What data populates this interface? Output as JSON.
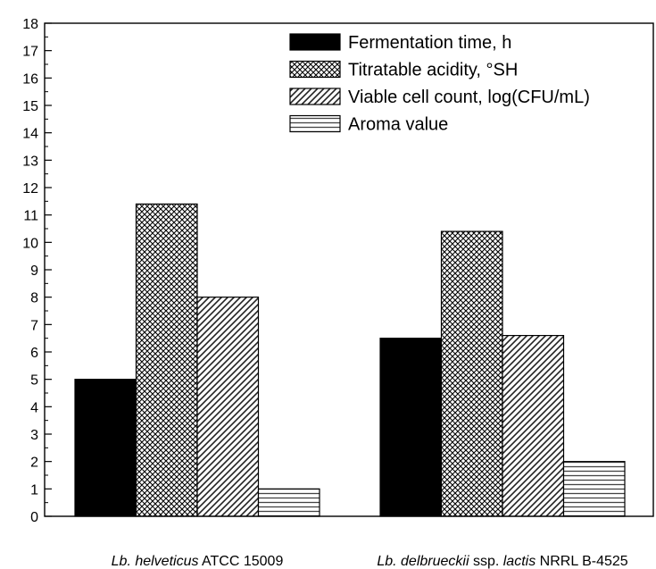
{
  "chart_data": {
    "type": "bar",
    "categories": [
      {
        "italic": "Lb. helveticus",
        "rest": " ATCC 15009"
      },
      {
        "italic": "Lb. delbrueckii",
        "mid": " ssp. ",
        "italic2": "lactis",
        "rest": " NRRL B-4525"
      }
    ],
    "series": [
      {
        "name": "Fermentation time, h",
        "values": [
          5,
          6.5
        ],
        "pattern": "solid"
      },
      {
        "name": "Titratable acidity, °SH",
        "values": [
          11.4,
          10.4
        ],
        "pattern": "crosshatch"
      },
      {
        "name": "Viable cell count, log(CFU/mL)",
        "values": [
          8,
          6.6
        ],
        "pattern": "diagonal"
      },
      {
        "name": "Aroma value",
        "values": [
          1,
          2
        ],
        "pattern": "horizontal"
      }
    ],
    "ylim": [
      0,
      18
    ],
    "yticks": [
      0,
      1,
      2,
      3,
      4,
      5,
      6,
      7,
      8,
      9,
      10,
      11,
      12,
      13,
      14,
      15,
      16,
      17,
      18
    ],
    "xlabel": "",
    "ylabel": "",
    "title": "",
    "legend": "top-right",
    "grid": false
  }
}
